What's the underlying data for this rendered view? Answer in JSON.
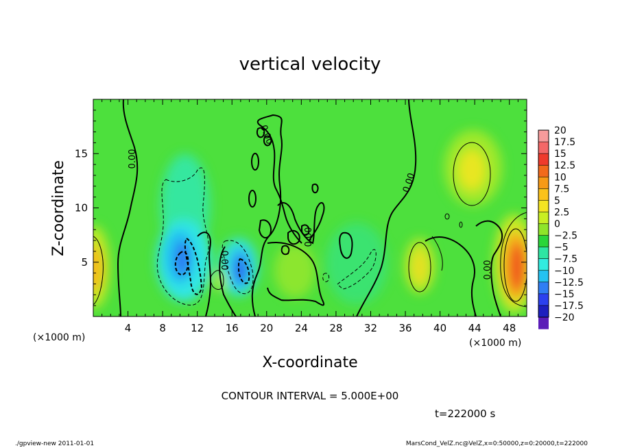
{
  "chart_data": {
    "type": "heatmap",
    "title": "vertical velocity",
    "xlabel": "X-coordinate",
    "ylabel": "Z-coordinate",
    "x_unit_label": "(×1000 m)",
    "y_unit_label": "(×1000 m)",
    "xlim": [
      0,
      50
    ],
    "ylim": [
      0,
      20
    ],
    "x_ticks": [
      "4",
      "8",
      "12",
      "16",
      "20",
      "24",
      "28",
      "32",
      "36",
      "40",
      "44",
      "48"
    ],
    "x_tick_values": [
      4,
      8,
      12,
      16,
      20,
      24,
      28,
      32,
      36,
      40,
      44,
      48
    ],
    "y_ticks": [
      "5",
      "10",
      "15"
    ],
    "y_tick_values": [
      5,
      10,
      15
    ],
    "colorbar": {
      "labels": [
        "20",
        "17.5",
        "15",
        "12.5",
        "10",
        "7.5",
        "5",
        "2.5",
        "0",
        "−2.5",
        "−5",
        "−7.5",
        "−10",
        "−12.5",
        "−15",
        "−17.5",
        "−20"
      ],
      "colors": [
        "#f79b9b",
        "#f46767",
        "#ef3a2c",
        "#f26a1b",
        "#f79a16",
        "#fbc21a",
        "#f4e421",
        "#c9ef23",
        "#8fe52a",
        "#2ad63a",
        "#2ee6a3",
        "#32ece0",
        "#24c2f2",
        "#2f7ef4",
        "#2b41ef",
        "#1d1fbf",
        "#5a1cb8"
      ]
    },
    "contour_interval": "CONTOUR INTERVAL = 5.000E+00",
    "contour_labels": [
      "0.00",
      "0.00",
      "0.00",
      "0.00",
      "0.00",
      "0.00"
    ],
    "features": [
      {
        "kind": "updraft",
        "x": 0.6,
        "z": 4.2,
        "max": 10
      },
      {
        "kind": "updraft",
        "x": 48.3,
        "z": 4.8,
        "max": 15
      },
      {
        "kind": "updraft",
        "x": 43.8,
        "z": 13.3,
        "max": 7.5
      },
      {
        "kind": "updraft",
        "x": 38.3,
        "z": 4.7,
        "max": 7.5
      },
      {
        "kind": "downdraft",
        "x": 10.6,
        "z": 5.3,
        "min": -12.5
      },
      {
        "kind": "downdraft",
        "x": 17.4,
        "z": 4.3,
        "min": -12.5
      }
    ],
    "time_label": "t=222000 s"
  },
  "footer": {
    "left": "./gpview-new   2011-01-01",
    "right": "MarsCond_VelZ.nc@VelZ,x=0:50000,z=0:20000,t=222000"
  }
}
